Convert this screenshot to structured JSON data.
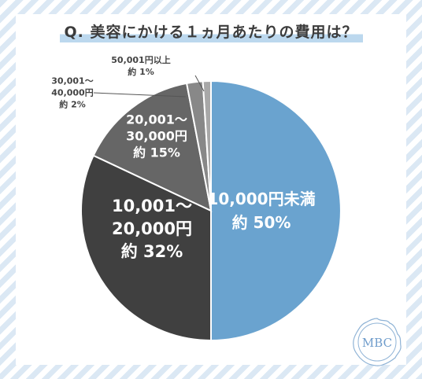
{
  "title": "Q. 美容にかける１ヵ月あたりの費用は？",
  "logo_text": "MBC",
  "colors": {
    "background_stripe": "#dbe8f4",
    "title_highlight": "#bcd8ee",
    "slice_1": "#6aa3cf",
    "slice_2": "#404040",
    "slice_3": "#666666",
    "slice_4": "#888888",
    "slice_5": "#a8a8a8"
  },
  "chart_data": {
    "type": "pie",
    "title": "Q. 美容にかける１ヵ月あたりの費用は？",
    "slices": [
      {
        "label_lines": [
          "10,000円未満",
          "約 50%"
        ],
        "value": 50
      },
      {
        "label_lines": [
          "10,001～",
          "20,000円",
          "約 32%"
        ],
        "value": 32
      },
      {
        "label_lines": [
          "20,001～",
          "30,000円",
          "約 15%"
        ],
        "value": 15
      },
      {
        "label_lines": [
          "30,001～",
          "40,000円",
          "約 2%"
        ],
        "value": 2
      },
      {
        "label_lines": [
          "50,001円以上",
          "約 1%"
        ],
        "value": 1
      }
    ],
    "start_angle": "12 o'clock",
    "direction": "clockwise",
    "legend": "none"
  }
}
